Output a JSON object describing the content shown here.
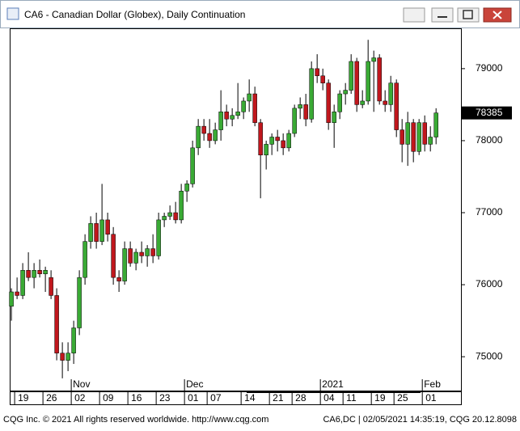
{
  "chart_data": {
    "type": "candlestick",
    "title": "CA6 - Canadian Dollar (Globex), Daily Continuation",
    "footer_left": "CQG Inc. © 2021 All rights reserved worldwide. http://www.cqg.com",
    "footer_right": "CA6,DC | 02/05/2021 14:35:19, CQG 20.12.8098",
    "up_color": "#3aaa35",
    "down_color": "#c0171d",
    "open": [
      75700,
      75900,
      75850,
      76200,
      76100,
      76200,
      76150,
      76100,
      75850,
      75050,
      74950,
      75050,
      75400,
      76100,
      76600,
      76850,
      76600,
      76900,
      76700,
      76100,
      76050,
      76500,
      76300,
      76450,
      76400,
      76500,
      76400,
      76900,
      76950,
      77000,
      76900,
      77300,
      77400,
      77900,
      78200,
      78100,
      78000,
      78150,
      78400,
      78300,
      78350,
      78400,
      78550,
      78650,
      78250,
      77800,
      77950,
      78050,
      78000,
      77900,
      78100,
      78450,
      78500,
      78300,
      79000,
      78900,
      78800,
      78250,
      78400,
      78650,
      78700,
      79100,
      78500,
      78550,
      79100,
      79150,
      78550,
      78500,
      78800,
      78150,
      77950,
      78250,
      77850,
      78250,
      77950,
      78050
    ],
    "high": [
      75950,
      76100,
      76300,
      76450,
      76300,
      76350,
      76250,
      76200,
      75950,
      75200,
      75200,
      75500,
      76200,
      76700,
      76950,
      77000,
      77400,
      77000,
      76800,
      76200,
      76600,
      76600,
      76500,
      76600,
      76550,
      76700,
      77000,
      77000,
      77100,
      77150,
      77400,
      77450,
      78000,
      78300,
      78300,
      78300,
      78250,
      78700,
      78500,
      78450,
      78800,
      78600,
      78850,
      78750,
      78300,
      78000,
      78100,
      78150,
      78100,
      78150,
      78500,
      78600,
      78650,
      79100,
      79200,
      79000,
      78850,
      78500,
      78700,
      78800,
      79200,
      79150,
      78700,
      79400,
      79250,
      79200,
      78700,
      78900,
      78850,
      78300,
      78400,
      78300,
      78300,
      78350,
      78200,
      78450
    ],
    "low": [
      75500,
      75800,
      75800,
      76050,
      75950,
      76100,
      75900,
      75800,
      74950,
      74700,
      74800,
      74900,
      75300,
      76000,
      76500,
      76500,
      76550,
      76600,
      76000,
      75900,
      76000,
      76250,
      76200,
      76300,
      76250,
      76300,
      76350,
      76800,
      76900,
      76850,
      76850,
      77150,
      77350,
      77800,
      78000,
      77900,
      77950,
      78000,
      78200,
      78200,
      78300,
      78300,
      78400,
      78200,
      77200,
      77600,
      77800,
      77850,
      77800,
      77850,
      78050,
      78300,
      78200,
      78250,
      78800,
      78700,
      78150,
      77900,
      78300,
      78500,
      78650,
      78400,
      78450,
      78500,
      78400,
      78500,
      78400,
      78400,
      78050,
      77700,
      77650,
      77700,
      77800,
      77850,
      77850,
      77950
    ],
    "close": [
      75900,
      75850,
      76200,
      76100,
      76200,
      76150,
      76200,
      75850,
      75050,
      74950,
      75050,
      75400,
      76100,
      76600,
      76850,
      76600,
      76900,
      76700,
      76100,
      76050,
      76500,
      76300,
      76450,
      76400,
      76500,
      76400,
      76900,
      76950,
      77000,
      76900,
      77300,
      77400,
      77900,
      78200,
      78100,
      78000,
      78150,
      78400,
      78300,
      78350,
      78400,
      78550,
      78650,
      78250,
      77800,
      77950,
      78050,
      78000,
      77900,
      78100,
      78450,
      78500,
      78300,
      79000,
      78900,
      78800,
      78250,
      78400,
      78650,
      78700,
      79100,
      78500,
      78550,
      79100,
      79150,
      78550,
      78500,
      78800,
      78150,
      77950,
      78250,
      77850,
      78250,
      77950,
      78050,
      78385
    ],
    "xlim": [
      -0.3,
      79.4
    ],
    "xticks": [
      {
        "value": 1,
        "label": "19"
      },
      {
        "value": 6,
        "label": "26"
      },
      {
        "value": 11,
        "label": "02"
      },
      {
        "value": 16,
        "label": "09"
      },
      {
        "value": 21,
        "label": "16"
      },
      {
        "value": 26,
        "label": "23"
      },
      {
        "value": 31,
        "label": "01"
      },
      {
        "value": 35,
        "label": "07"
      },
      {
        "value": 41,
        "label": "14"
      },
      {
        "value": 46,
        "label": "21"
      },
      {
        "value": 50,
        "label": "28"
      },
      {
        "value": 55,
        "label": "04"
      },
      {
        "value": 59,
        "label": "11"
      },
      {
        "value": 64,
        "label": "19"
      },
      {
        "value": 68,
        "label": "25"
      },
      {
        "value": 73,
        "label": "01"
      }
    ],
    "month_ticks": [
      {
        "value": 11,
        "label": "Nov"
      },
      {
        "value": 31,
        "label": "Dec"
      },
      {
        "value": 55,
        "label": "2021"
      },
      {
        "value": 73,
        "label": "Feb"
      }
    ],
    "ylim": [
      74530,
      79560
    ],
    "yticks": [
      75000,
      76000,
      77000,
      78000,
      79000
    ]
  }
}
